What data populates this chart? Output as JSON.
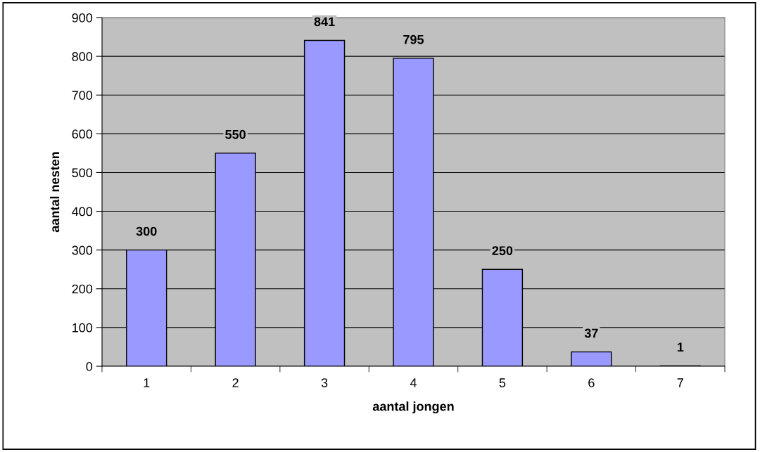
{
  "chart_data": {
    "type": "bar",
    "xlabel": "aantal jongen",
    "ylabel": "aantal nesten",
    "categories": [
      "1",
      "2",
      "3",
      "4",
      "5",
      "6",
      "7"
    ],
    "values": [
      300,
      550,
      841,
      795,
      250,
      37,
      1
    ],
    "color": "#9999ff",
    "ylim": [
      0,
      900
    ],
    "yticks": [
      0,
      100,
      200,
      300,
      400,
      500,
      600,
      700,
      800,
      900
    ],
    "grid": "y",
    "data_labels": true
  }
}
